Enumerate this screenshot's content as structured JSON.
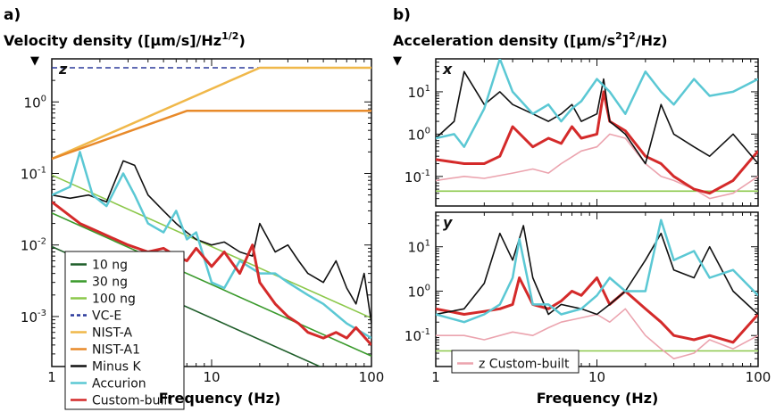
{
  "panels": {
    "a": {
      "letter": "a)",
      "title": "Velocity density ([µm/s]/Hz",
      "title_sup": "1/2",
      "title_end": ")"
    },
    "b": {
      "letter": "b)",
      "title": "Acceleration density ([µm/s",
      "title_sup": "2",
      "title_end": "]",
      "title_sup2": "2",
      "title_end2": "/Hz)"
    }
  },
  "axis_marker": "▼",
  "xlabel": "Frequency (Hz)",
  "colors": {
    "ng10": "#1f5e2a",
    "ng30": "#3a9a2c",
    "ng100": "#8cc84b",
    "vce": "#2b3a9c",
    "nista": "#f0b84a",
    "nista1": "#e88a2a",
    "minusk": "#111111",
    "accurion": "#5bc8d4",
    "custom": "#d42a2a",
    "zcustom": "#eba3ae"
  },
  "chart_data": [
    {
      "type": "line",
      "panel": "a",
      "axis_tag": "z",
      "xscale": "log",
      "yscale": "log",
      "xlim": [
        1,
        100
      ],
      "ylim": [
        0.0002,
        4
      ],
      "x_ticks": [
        "1",
        "10",
        "100"
      ],
      "y_ticks": [
        {
          "base": "10",
          "exp": "-3",
          "v": 0.001
        },
        {
          "base": "10",
          "exp": "-2",
          "v": 0.01
        },
        {
          "base": "10",
          "exp": "-1",
          "v": 0.1
        },
        {
          "base": "10",
          "exp": "0",
          "v": 1
        }
      ],
      "legend": {
        "position": "bottom-left",
        "entries": [
          {
            "label": "10 ng",
            "key": "ng10",
            "style": "solid"
          },
          {
            "label": "30 ng",
            "key": "ng30",
            "style": "solid"
          },
          {
            "label": "100 ng",
            "key": "ng100",
            "style": "solid"
          },
          {
            "label": "VC-E",
            "key": "vce",
            "style": "dashed"
          },
          {
            "label": "NIST-A",
            "key": "nista",
            "style": "solid"
          },
          {
            "label": "NIST-A1",
            "key": "nista1",
            "style": "solid"
          },
          {
            "label": "Minus K",
            "key": "minusk",
            "style": "solid"
          },
          {
            "label": "Accurion",
            "key": "accurion",
            "style": "solid"
          },
          {
            "label": "Custom-built",
            "key": "custom",
            "style": "solid"
          }
        ]
      },
      "series": [
        {
          "key": "ng10",
          "x": [
            1,
            100
          ],
          "y": [
            0.0095,
            9.5e-05
          ]
        },
        {
          "key": "ng30",
          "x": [
            1,
            100
          ],
          "y": [
            0.028,
            0.00028
          ]
        },
        {
          "key": "ng100",
          "x": [
            1,
            100
          ],
          "y": [
            0.095,
            0.00095
          ]
        },
        {
          "key": "vce",
          "x": [
            1,
            100
          ],
          "y": [
            3,
            3
          ],
          "dash": true
        },
        {
          "key": "nista",
          "x": [
            1,
            20,
            100
          ],
          "y": [
            0.16,
            3,
            3
          ]
        },
        {
          "key": "nista1",
          "x": [
            1,
            7,
            100
          ],
          "y": [
            0.16,
            0.75,
            0.75
          ]
        },
        {
          "key": "minusk",
          "x": [
            1,
            1.3,
            1.7,
            2.2,
            2.8,
            3.3,
            4,
            5,
            6,
            7,
            8,
            10,
            12,
            15,
            18,
            20,
            25,
            30,
            35,
            40,
            50,
            60,
            70,
            80,
            90,
            100
          ],
          "y": [
            0.05,
            0.045,
            0.05,
            0.04,
            0.15,
            0.13,
            0.05,
            0.03,
            0.02,
            0.015,
            0.012,
            0.01,
            0.011,
            0.008,
            0.007,
            0.02,
            0.008,
            0.01,
            0.006,
            0.004,
            0.003,
            0.006,
            0.0025,
            0.0015,
            0.004,
            0.0008
          ]
        },
        {
          "key": "accurion",
          "x": [
            1,
            1.3,
            1.5,
            1.8,
            2.2,
            2.8,
            3.3,
            4,
            5,
            6,
            7,
            8,
            10,
            12,
            15,
            20,
            25,
            30,
            40,
            50,
            70,
            100
          ],
          "y": [
            0.05,
            0.065,
            0.2,
            0.05,
            0.035,
            0.1,
            0.05,
            0.02,
            0.015,
            0.03,
            0.012,
            0.015,
            0.003,
            0.0025,
            0.006,
            0.004,
            0.004,
            0.003,
            0.002,
            0.0015,
            0.0008,
            0.0005
          ]
        },
        {
          "key": "custom",
          "x": [
            1,
            1.5,
            2,
            2.5,
            3,
            4,
            5,
            6,
            7,
            8,
            10,
            12,
            15,
            18,
            20,
            25,
            30,
            35,
            40,
            50,
            60,
            70,
            80,
            100
          ],
          "y": [
            0.04,
            0.02,
            0.015,
            0.012,
            0.01,
            0.008,
            0.009,
            0.007,
            0.006,
            0.009,
            0.005,
            0.008,
            0.004,
            0.01,
            0.003,
            0.0015,
            0.001,
            0.0008,
            0.0006,
            0.0005,
            0.0006,
            0.0005,
            0.0007,
            0.0004
          ]
        }
      ]
    },
    {
      "type": "line",
      "panel": "b",
      "axis_tag": "x",
      "xscale": "log",
      "yscale": "log",
      "xlim": [
        1,
        100
      ],
      "ylim": [
        0.02,
        60
      ],
      "x_ticks": [],
      "y_ticks": [
        {
          "base": "10",
          "exp": "-1",
          "v": 0.1
        },
        {
          "base": "10",
          "exp": "0",
          "v": 1
        },
        {
          "base": "10",
          "exp": "1",
          "v": 10
        }
      ],
      "series": [
        {
          "key": "ng100",
          "x": [
            1,
            100
          ],
          "y": [
            0.045,
            0.045
          ]
        },
        {
          "key": "zcustom",
          "x": [
            1,
            1.5,
            2,
            3,
            4,
            5,
            6,
            8,
            10,
            12,
            15,
            20,
            25,
            30,
            40,
            50,
            70,
            100
          ],
          "y": [
            0.08,
            0.1,
            0.09,
            0.12,
            0.15,
            0.12,
            0.2,
            0.4,
            0.5,
            1,
            0.8,
            0.2,
            0.1,
            0.08,
            0.05,
            0.03,
            0.04,
            0.1
          ]
        },
        {
          "key": "custom",
          "x": [
            1,
            1.5,
            2,
            2.5,
            3,
            4,
            5,
            6,
            7,
            8,
            10,
            11,
            12,
            15,
            20,
            25,
            30,
            40,
            50,
            70,
            100
          ],
          "y": [
            0.25,
            0.2,
            0.2,
            0.3,
            1.5,
            0.5,
            0.8,
            0.6,
            1.5,
            0.8,
            1,
            10,
            2,
            1.2,
            0.3,
            0.2,
            0.1,
            0.05,
            0.04,
            0.08,
            0.4
          ]
        },
        {
          "key": "minusk",
          "x": [
            1,
            1.3,
            1.5,
            2,
            2.5,
            3,
            4,
            5,
            6,
            7,
            8,
            10,
            11,
            12,
            15,
            20,
            25,
            30,
            40,
            50,
            70,
            100
          ],
          "y": [
            0.8,
            2,
            30,
            5,
            10,
            5,
            3,
            2,
            3,
            5,
            2,
            3,
            20,
            2,
            1,
            0.2,
            5,
            1,
            0.5,
            0.3,
            1,
            0.2
          ]
        },
        {
          "key": "accurion",
          "x": [
            1,
            1.3,
            1.5,
            2,
            2.5,
            3,
            4,
            5,
            6,
            7,
            8,
            10,
            12,
            15,
            20,
            25,
            30,
            40,
            50,
            70,
            100
          ],
          "y": [
            0.8,
            1,
            0.5,
            4,
            60,
            10,
            3,
            5,
            2,
            4,
            6,
            20,
            10,
            3,
            30,
            10,
            5,
            20,
            8,
            10,
            20
          ]
        }
      ]
    },
    {
      "type": "line",
      "panel": "b",
      "axis_tag": "y",
      "xscale": "log",
      "yscale": "log",
      "xlim": [
        1,
        100
      ],
      "ylim": [
        0.02,
        60
      ],
      "x_ticks": [
        "1",
        "10",
        "100"
      ],
      "y_ticks": [
        {
          "base": "10",
          "exp": "-1",
          "v": 0.1
        },
        {
          "base": "10",
          "exp": "0",
          "v": 1
        },
        {
          "base": "10",
          "exp": "1",
          "v": 10
        }
      ],
      "legend": {
        "position": "bottom-left",
        "entries": [
          {
            "label": "z Custom-built",
            "key": "zcustom",
            "style": "solid"
          }
        ]
      },
      "series": [
        {
          "key": "ng100",
          "x": [
            1,
            100
          ],
          "y": [
            0.045,
            0.045
          ]
        },
        {
          "key": "zcustom",
          "x": [
            1,
            1.5,
            2,
            3,
            4,
            5,
            6,
            8,
            10,
            12,
            15,
            20,
            25,
            30,
            40,
            50,
            70,
            100
          ],
          "y": [
            0.1,
            0.1,
            0.08,
            0.12,
            0.1,
            0.15,
            0.2,
            0.25,
            0.3,
            0.2,
            0.4,
            0.1,
            0.05,
            0.03,
            0.04,
            0.08,
            0.05,
            0.1
          ]
        },
        {
          "key": "custom",
          "x": [
            1,
            1.5,
            2,
            2.5,
            3,
            3.3,
            4,
            5,
            6,
            7,
            8,
            10,
            12,
            15,
            20,
            25,
            30,
            40,
            50,
            70,
            100
          ],
          "y": [
            0.4,
            0.3,
            0.35,
            0.4,
            0.5,
            2,
            0.5,
            0.4,
            0.6,
            1,
            0.8,
            2,
            0.5,
            1,
            0.4,
            0.2,
            0.1,
            0.08,
            0.1,
            0.07,
            0.3
          ]
        },
        {
          "key": "minusk",
          "x": [
            1,
            1.5,
            2,
            2.5,
            3,
            3.5,
            4,
            5,
            6,
            8,
            10,
            12,
            15,
            20,
            25,
            30,
            40,
            50,
            70,
            100
          ],
          "y": [
            0.3,
            0.4,
            1.5,
            20,
            5,
            30,
            2,
            0.3,
            0.5,
            0.4,
            0.3,
            0.5,
            1,
            5,
            20,
            3,
            2,
            10,
            1,
            0.3
          ]
        },
        {
          "key": "accurion",
          "x": [
            1,
            1.5,
            2,
            2.5,
            3,
            3.3,
            4,
            5,
            6,
            8,
            10,
            12,
            15,
            20,
            25,
            30,
            40,
            50,
            70,
            100
          ],
          "y": [
            0.3,
            0.2,
            0.3,
            0.5,
            2,
            15,
            0.5,
            0.5,
            0.3,
            0.4,
            0.8,
            2,
            1,
            1,
            40,
            5,
            8,
            2,
            3,
            0.8
          ]
        }
      ]
    }
  ]
}
